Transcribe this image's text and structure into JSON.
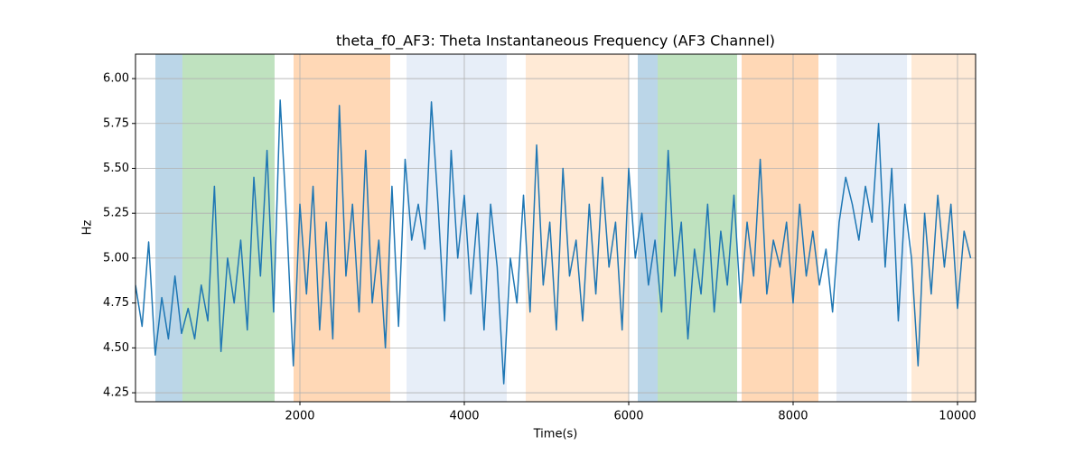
{
  "chart_data": {
    "type": "line",
    "title": "theta_f0_AF3: Theta Instantaneous Frequency (AF3 Channel)",
    "xlabel": "Time(s)",
    "ylabel": "Hz",
    "xlim": [
      0,
      10220
    ],
    "ylim": [
      4.2,
      6.136
    ],
    "xticks": [
      2000,
      4000,
      6000,
      8000,
      10000
    ],
    "yticks": [
      {
        "value": 4.25,
        "label": "4.25"
      },
      {
        "value": 4.5,
        "label": "4.50"
      },
      {
        "value": 4.75,
        "label": "4.75"
      },
      {
        "value": 5,
        "label": "5.00"
      },
      {
        "value": 5.25,
        "label": "5.25"
      },
      {
        "value": 5.5,
        "label": "5.50"
      },
      {
        "value": 5.75,
        "label": "5.75"
      },
      {
        "value": 6,
        "label": "6.00"
      }
    ],
    "grid": true,
    "spans": [
      {
        "x0": 242,
        "x1": 571,
        "color": "#1f77b4",
        "alpha": 0.3
      },
      {
        "x0": 571,
        "x1": 1692,
        "color": "#2ca02c",
        "alpha": 0.3
      },
      {
        "x0": 1923,
        "x1": 3099,
        "color": "#ff7f0e",
        "alpha": 0.3
      },
      {
        "x0": 3297,
        "x1": 4516,
        "color": "#aec7e8",
        "alpha": 0.3
      },
      {
        "x0": 4747,
        "x1": 6000,
        "color": "#ffbb78",
        "alpha": 0.3
      },
      {
        "x0": 6110,
        "x1": 6352,
        "color": "#1f77b4",
        "alpha": 0.3
      },
      {
        "x0": 6352,
        "x1": 7319,
        "color": "#2ca02c",
        "alpha": 0.3
      },
      {
        "x0": 7374,
        "x1": 8308,
        "color": "#ff7f0e",
        "alpha": 0.3
      },
      {
        "x0": 8527,
        "x1": 9385,
        "color": "#aec7e8",
        "alpha": 0.3
      },
      {
        "x0": 9440,
        "x1": 10220,
        "color": "#ffbb78",
        "alpha": 0.3
      }
    ],
    "x": [
      0,
      80,
      160,
      240,
      320,
      400,
      480,
      560,
      640,
      720,
      800,
      880,
      960,
      1040,
      1120,
      1200,
      1280,
      1360,
      1440,
      1520,
      1600,
      1680,
      1760,
      1840,
      1920,
      2000,
      2080,
      2160,
      2240,
      2320,
      2400,
      2480,
      2560,
      2640,
      2720,
      2800,
      2880,
      2960,
      3040,
      3120,
      3200,
      3280,
      3360,
      3440,
      3520,
      3600,
      3680,
      3760,
      3840,
      3920,
      4000,
      4080,
      4160,
      4240,
      4320,
      4400,
      4480,
      4560,
      4640,
      4720,
      4800,
      4880,
      4960,
      5040,
      5120,
      5200,
      5280,
      5360,
      5440,
      5520,
      5600,
      5680,
      5760,
      5840,
      5920,
      6000,
      6080,
      6160,
      6240,
      6320,
      6400,
      6480,
      6560,
      6640,
      6720,
      6800,
      6880,
      6960,
      7040,
      7120,
      7200,
      7280,
      7360,
      7440,
      7520,
      7600,
      7680,
      7760,
      7840,
      7920,
      8000,
      8080,
      8160,
      8240,
      8320,
      8400,
      8480,
      8560,
      8640,
      8720,
      8800,
      8880,
      8960,
      9040,
      9120,
      9200,
      9280,
      9360,
      9440,
      9520,
      9600,
      9680,
      9760,
      9840,
      9920,
      10000,
      10080,
      10160
    ],
    "series": [
      {
        "color": "#1f77b4",
        "values": [
          4.85,
          4.62,
          5.09,
          4.46,
          4.78,
          4.55,
          4.9,
          4.58,
          4.72,
          4.55,
          4.85,
          4.65,
          5.4,
          4.48,
          5.0,
          4.75,
          5.1,
          4.6,
          5.45,
          4.9,
          5.6,
          4.7,
          5.88,
          5.2,
          4.4,
          5.3,
          4.8,
          5.4,
          4.6,
          5.2,
          4.55,
          5.85,
          4.9,
          5.3,
          4.7,
          5.6,
          4.75,
          5.1,
          4.5,
          5.4,
          4.62,
          5.55,
          5.1,
          5.3,
          5.05,
          5.87,
          5.3,
          4.65,
          5.6,
          5.0,
          5.35,
          4.8,
          5.25,
          4.6,
          5.3,
          4.95,
          4.3,
          5.0,
          4.75,
          5.35,
          4.7,
          5.63,
          4.85,
          5.2,
          4.6,
          5.5,
          4.9,
          5.1,
          4.65,
          5.3,
          4.8,
          5.45,
          4.95,
          5.2,
          4.6,
          5.5,
          5.0,
          5.25,
          4.85,
          5.1,
          4.7,
          5.6,
          4.9,
          5.2,
          4.55,
          5.05,
          4.8,
          5.3,
          4.7,
          5.15,
          4.85,
          5.35,
          4.75,
          5.2,
          4.9,
          5.55,
          4.8,
          5.1,
          4.95,
          5.2,
          4.75,
          5.3,
          4.9,
          5.15,
          4.85,
          5.05,
          4.7,
          5.2,
          5.45,
          5.3,
          5.1,
          5.4,
          5.2,
          5.75,
          4.95,
          5.5,
          4.65,
          5.3,
          5.0,
          4.4,
          5.25,
          4.8,
          5.35,
          4.95,
          5.3,
          4.72,
          5.15,
          5.0
        ]
      }
    ]
  }
}
